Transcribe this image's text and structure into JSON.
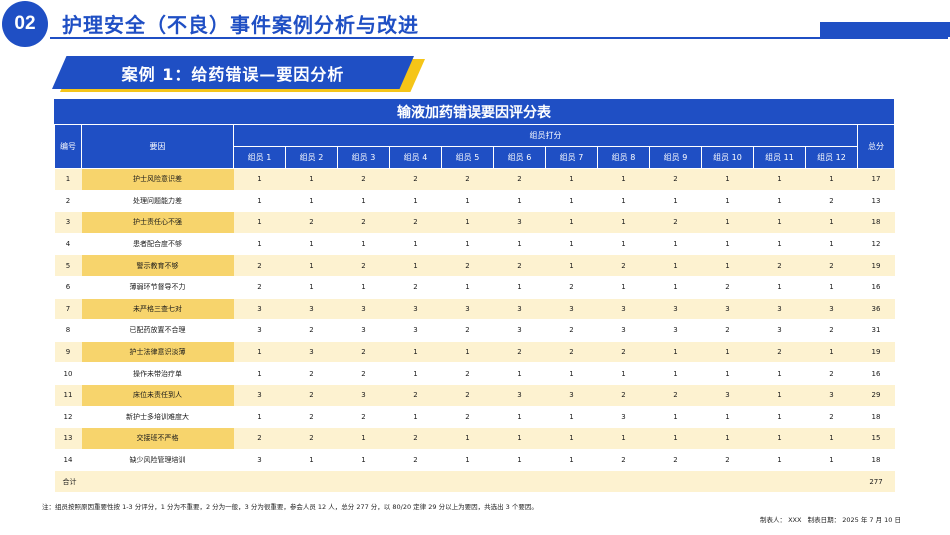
{
  "header": {
    "section_number": "02",
    "title": "护理安全（不良）事件案例分析与改进"
  },
  "case_banner": {
    "label": "案例 1：给药错误—要因分析"
  },
  "table": {
    "title": "输液加药错误要因评分表",
    "col_no": "编号",
    "col_factor": "要因",
    "group_header": "组员打分",
    "col_total": "总分",
    "members": [
      "组员 1",
      "组员 2",
      "组员 3",
      "组员 4",
      "组员 5",
      "组员 6",
      "组员 7",
      "组员 8",
      "组员 9",
      "组员 10",
      "组员 11",
      "组员 12"
    ],
    "rows": [
      {
        "no": "1",
        "factor": "护士风险意识差",
        "scores": [
          "1",
          "1",
          "2",
          "2",
          "2",
          "2",
          "1",
          "1",
          "2",
          "1",
          "1",
          "1"
        ],
        "total": "17"
      },
      {
        "no": "2",
        "factor": "处理问题能力差",
        "scores": [
          "1",
          "1",
          "1",
          "1",
          "1",
          "1",
          "1",
          "1",
          "1",
          "1",
          "1",
          "2"
        ],
        "total": "13"
      },
      {
        "no": "3",
        "factor": "护士责任心不强",
        "scores": [
          "1",
          "2",
          "2",
          "2",
          "1",
          "3",
          "1",
          "1",
          "2",
          "1",
          "1",
          "1"
        ],
        "total": "18"
      },
      {
        "no": "4",
        "factor": "患者配合度不够",
        "scores": [
          "1",
          "1",
          "1",
          "1",
          "1",
          "1",
          "1",
          "1",
          "1",
          "1",
          "1",
          "1"
        ],
        "total": "12"
      },
      {
        "no": "5",
        "factor": "警示教育不够",
        "scores": [
          "2",
          "1",
          "2",
          "1",
          "2",
          "2",
          "1",
          "2",
          "1",
          "1",
          "2",
          "2"
        ],
        "total": "19"
      },
      {
        "no": "6",
        "factor": "薄弱环节督导不力",
        "scores": [
          "2",
          "1",
          "1",
          "2",
          "1",
          "1",
          "2",
          "1",
          "1",
          "2",
          "1",
          "1"
        ],
        "total": "16"
      },
      {
        "no": "7",
        "factor": "未严格三查七对",
        "scores": [
          "3",
          "3",
          "3",
          "3",
          "3",
          "3",
          "3",
          "3",
          "3",
          "3",
          "3",
          "3"
        ],
        "total": "36"
      },
      {
        "no": "8",
        "factor": "已配药放置不合理",
        "scores": [
          "3",
          "2",
          "3",
          "3",
          "2",
          "3",
          "2",
          "3",
          "3",
          "2",
          "3",
          "2"
        ],
        "total": "31"
      },
      {
        "no": "9",
        "factor": "护士法律意识淡薄",
        "scores": [
          "1",
          "3",
          "2",
          "1",
          "1",
          "2",
          "2",
          "2",
          "1",
          "1",
          "2",
          "1"
        ],
        "total": "19"
      },
      {
        "no": "10",
        "factor": "操作未带治疗单",
        "scores": [
          "1",
          "2",
          "2",
          "1",
          "2",
          "1",
          "1",
          "1",
          "1",
          "1",
          "1",
          "2"
        ],
        "total": "16"
      },
      {
        "no": "11",
        "factor": "床位未责任到人",
        "scores": [
          "3",
          "2",
          "3",
          "2",
          "2",
          "3",
          "3",
          "2",
          "2",
          "3",
          "1",
          "3"
        ],
        "total": "29"
      },
      {
        "no": "12",
        "factor": "新护士多培训难度大",
        "scores": [
          "1",
          "2",
          "2",
          "1",
          "2",
          "1",
          "1",
          "3",
          "1",
          "1",
          "1",
          "2"
        ],
        "total": "18"
      },
      {
        "no": "13",
        "factor": "交接班不严格",
        "scores": [
          "2",
          "2",
          "1",
          "2",
          "1",
          "1",
          "1",
          "1",
          "1",
          "1",
          "1",
          "1"
        ],
        "total": "15"
      },
      {
        "no": "14",
        "factor": "缺少风险管理培训",
        "scores": [
          "3",
          "1",
          "1",
          "2",
          "1",
          "1",
          "1",
          "2",
          "2",
          "2",
          "1",
          "1"
        ],
        "total": "18"
      }
    ],
    "total_label": "合计",
    "grand_total": "277"
  },
  "note": "注：组员按照原因重要性按 1-3 分评分，1 分为不重要，2 分为一般，3 分为很重要，参会人员 12 人，总分 277 分，以 80/20 定律 29 分以上为要因，共选出 3 个要因。",
  "footer": {
    "maker": "制表人： XXX",
    "date": "制表日期： 2025 年 7 月 10 日"
  },
  "colors": {
    "primary": "#1f4fc4",
    "accent": "#f5c518",
    "row_tint": "#fdf2d0",
    "factor_highlight": "#f7d46c"
  }
}
